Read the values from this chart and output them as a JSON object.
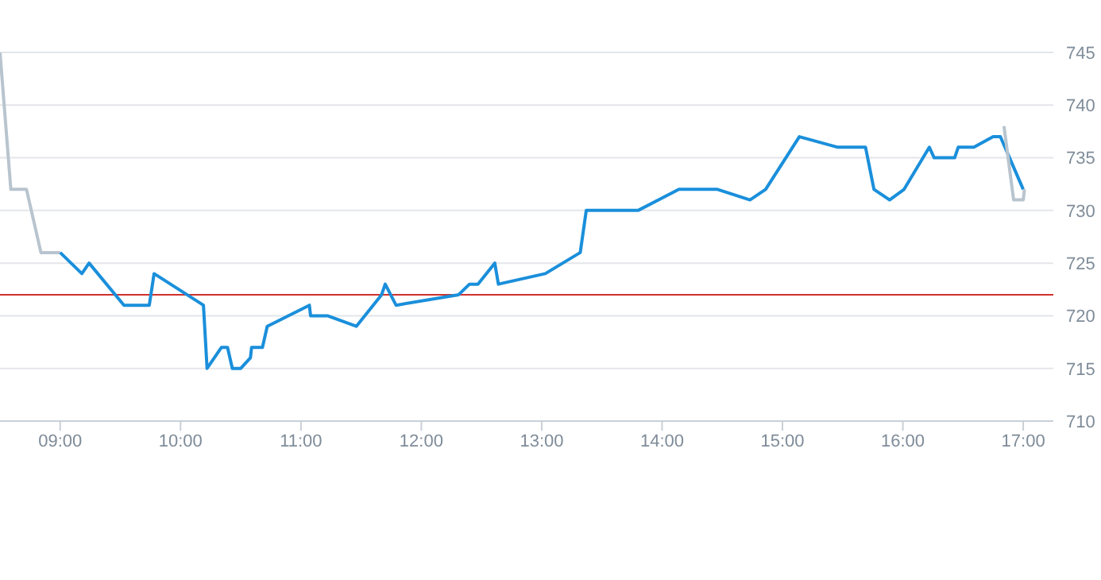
{
  "chart_data": {
    "type": "line",
    "xlim": [
      8.5,
      17.25
    ],
    "ylim": [
      710,
      745
    ],
    "yticks": [
      710,
      715,
      720,
      725,
      730,
      735,
      740,
      745
    ],
    "xticks": [
      {
        "value": 9,
        "label": "09:00"
      },
      {
        "value": 10,
        "label": "10:00"
      },
      {
        "value": 11,
        "label": "11:00"
      },
      {
        "value": 12,
        "label": "12:00"
      },
      {
        "value": 13,
        "label": "13:00"
      },
      {
        "value": 14,
        "label": "14:00"
      },
      {
        "value": 15,
        "label": "15:00"
      },
      {
        "value": 16,
        "label": "16:00"
      },
      {
        "value": 17,
        "label": "17:00"
      }
    ],
    "grid": "y",
    "marker": "none",
    "line_style": "solid",
    "ref_lines": [
      {
        "axis": "y",
        "value": 722,
        "color": "#d0312d"
      }
    ],
    "series": [
      {
        "color": "#b8c4ce",
        "x": [
          8.5,
          8.59,
          8.72,
          8.84,
          9.0
        ],
        "values": [
          745,
          732,
          732,
          726,
          726
        ]
      },
      {
        "color": "#1a8fdb",
        "x": [
          9.0,
          9.18,
          9.24,
          9.53,
          9.74,
          9.78,
          10.19,
          10.22,
          10.34,
          10.39,
          10.43,
          10.5,
          10.58,
          10.59,
          10.68,
          10.72,
          11.07,
          11.08,
          11.22,
          11.46,
          11.67,
          11.7,
          11.79,
          12.31,
          12.4,
          12.47,
          12.61,
          12.64,
          13.03,
          13.32,
          13.37,
          13.8,
          14.14,
          14.46,
          14.73,
          14.86,
          15.14,
          15.46,
          15.69,
          15.76,
          15.89,
          16.01,
          16.22,
          16.26,
          16.43,
          16.46,
          16.59,
          16.75,
          16.81,
          17.0
        ],
        "values": [
          726,
          724,
          725,
          721,
          721,
          724,
          721,
          715,
          717,
          717,
          715,
          715,
          716,
          717,
          717,
          719,
          721,
          720,
          720,
          719,
          722,
          723,
          721,
          722,
          723,
          723,
          725,
          723,
          724,
          726,
          730,
          730,
          732,
          732,
          731,
          732,
          737,
          736,
          736,
          732,
          731,
          732,
          736,
          735,
          735,
          736,
          736,
          737,
          737,
          732
        ]
      },
      {
        "color": "#b8c4ce",
        "x": [
          16.84,
          16.92,
          17.0,
          17.01
        ],
        "values": [
          738,
          731,
          731,
          732
        ]
      }
    ]
  }
}
